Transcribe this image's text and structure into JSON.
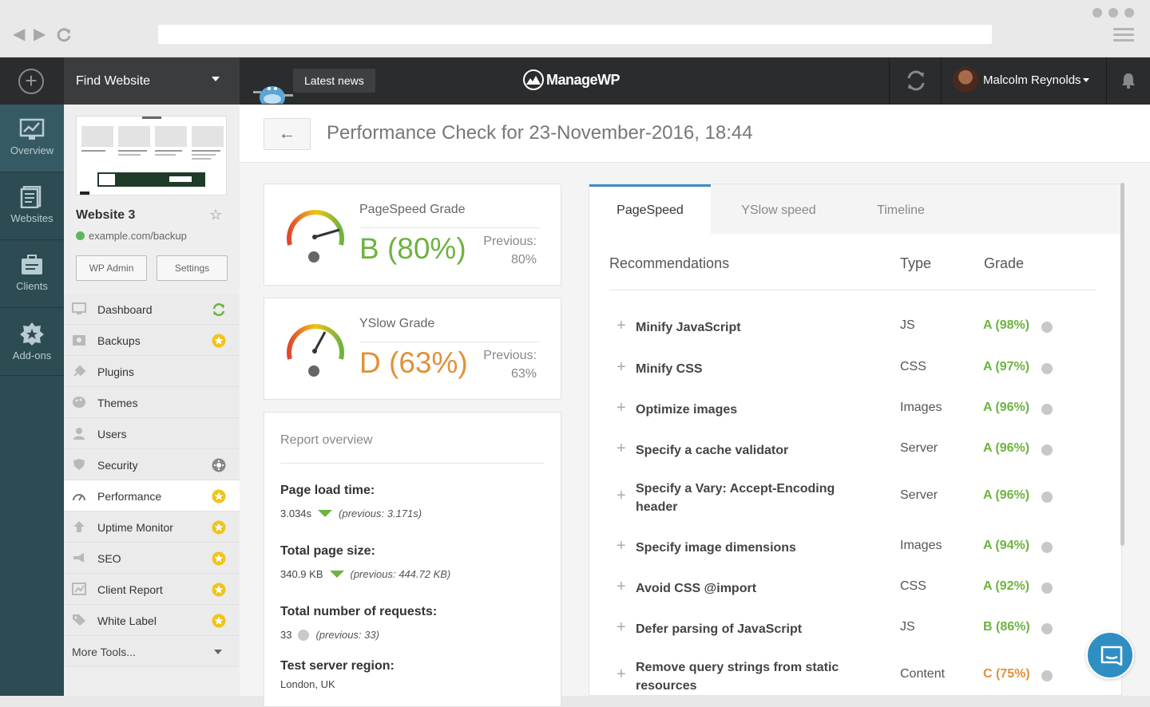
{
  "browser": {
    "back": "◀",
    "forward": "▶",
    "reload": "C"
  },
  "topbar": {
    "find_website": "Find Website",
    "latest_news": "Latest news",
    "logo": "ManageWP",
    "user_name": "Malcolm Reynolds"
  },
  "leftnav": [
    {
      "label": "Overview",
      "icon": "chart-icon"
    },
    {
      "label": "Websites",
      "icon": "websites-icon"
    },
    {
      "label": "Clients",
      "icon": "clients-icon"
    },
    {
      "label": "Add-ons",
      "icon": "addons-icon"
    }
  ],
  "site": {
    "name": "Website 3",
    "url": "example.com/backup",
    "wp_admin": "WP Admin",
    "settings": "Settings"
  },
  "menu": [
    {
      "label": "Dashboard",
      "icon": "monitor-icon",
      "badge": "refresh"
    },
    {
      "label": "Backups",
      "icon": "backup-icon",
      "badge": "star"
    },
    {
      "label": "Plugins",
      "icon": "plug-icon",
      "badge": ""
    },
    {
      "label": "Themes",
      "icon": "palette-icon",
      "badge": ""
    },
    {
      "label": "Users",
      "icon": "user-icon",
      "badge": ""
    },
    {
      "label": "Security",
      "icon": "shield-icon",
      "badge": "gear"
    },
    {
      "label": "Performance",
      "icon": "speedometer-icon",
      "badge": "star"
    },
    {
      "label": "Uptime Monitor",
      "icon": "arrow-up-icon",
      "badge": "star"
    },
    {
      "label": "SEO",
      "icon": "megaphone-icon",
      "badge": "star"
    },
    {
      "label": "Client Report",
      "icon": "report-icon",
      "badge": "star"
    },
    {
      "label": "White Label",
      "icon": "tag-icon",
      "badge": "star"
    }
  ],
  "more_tools": "More Tools...",
  "page": {
    "title": "Performance Check for 23-November-2016, 18:44",
    "back": "←"
  },
  "pagespeed": {
    "label": "PageSpeed Grade",
    "value": "B (80%)",
    "prev_label": "Previous:",
    "prev_value": "80%",
    "color": "#6db33f",
    "score": 0.8
  },
  "yslow": {
    "label": "YSlow Grade",
    "value": "D (63%)",
    "prev_label": "Previous:",
    "prev_value": "63%",
    "color": "#e0913a",
    "score": 0.63
  },
  "report": {
    "title": "Report overview",
    "metrics": [
      {
        "heading": "Page load time:",
        "value": "3.034s",
        "prev": "(previous: 3.171s)",
        "trend": "down"
      },
      {
        "heading": "Total page size:",
        "value": "340.9 KB",
        "prev": "(previous: 444.72 KB)",
        "trend": "down"
      },
      {
        "heading": "Total number of requests:",
        "value": "33",
        "prev": "(previous: 33)",
        "trend": "same"
      },
      {
        "heading": "Test server region:",
        "value": "London, UK",
        "prev": "",
        "trend": ""
      }
    ]
  },
  "tabs": [
    "PageSpeed",
    "YSlow speed",
    "Timeline"
  ],
  "table": {
    "headers": {
      "rec": "Recommendations",
      "type": "Type",
      "grade": "Grade"
    },
    "rows": [
      {
        "name": "Minify JavaScript",
        "type": "JS",
        "grade": "A (98%)",
        "color": "#6db33f"
      },
      {
        "name": "Minify CSS",
        "type": "CSS",
        "grade": "A (97%)",
        "color": "#6db33f"
      },
      {
        "name": "Optimize images",
        "type": "Images",
        "grade": "A (96%)",
        "color": "#6db33f"
      },
      {
        "name": "Specify a cache validator",
        "type": "Server",
        "grade": "A (96%)",
        "color": "#6db33f"
      },
      {
        "name": "Specify a Vary: Accept-Encoding header",
        "type": "Server",
        "grade": "A (96%)",
        "color": "#6db33f"
      },
      {
        "name": "Specify image dimensions",
        "type": "Images",
        "grade": "A (94%)",
        "color": "#6db33f"
      },
      {
        "name": "Avoid CSS @import",
        "type": "CSS",
        "grade": "A (92%)",
        "color": "#6db33f"
      },
      {
        "name": "Defer parsing of JavaScript",
        "type": "JS",
        "grade": "B (86%)",
        "color": "#6db33f"
      },
      {
        "name": "Remove query strings from static resources",
        "type": "Content",
        "grade": "C (75%)",
        "color": "#e0913a"
      }
    ]
  },
  "colors": {
    "accent": "#3a8fc4",
    "good": "#6db33f",
    "warn": "#e0913a",
    "star": "#f0c419"
  }
}
